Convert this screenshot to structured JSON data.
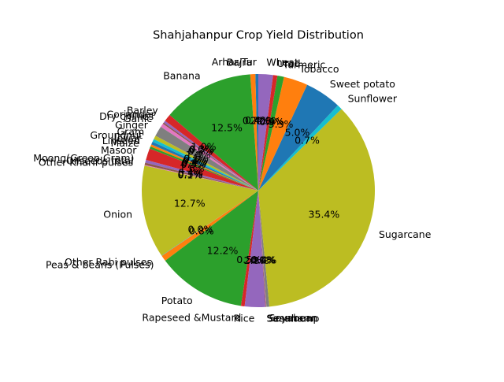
{
  "chart_data": {
    "type": "pie",
    "title": "Shahjahanpur Crop Yield Distribution",
    "start_angle_deg": 90,
    "direction": "counterclockwise",
    "slices": [
      {
        "label": "Arhar/Tur",
        "value": 0.4,
        "pct_label": "0.4%",
        "color": "#1f77b4"
      },
      {
        "label": "Bajra",
        "value": 0.7,
        "pct_label": "0.7%",
        "color": "#ff7f0e"
      },
      {
        "label": "Banana",
        "value": 12.5,
        "pct_label": "12.5%",
        "color": "#2ca02c"
      },
      {
        "label": "Barley",
        "value": 1.0,
        "pct_label": "1.0%",
        "color": "#d62728"
      },
      {
        "label": "Coriander",
        "value": 0.3,
        "pct_label": "0.3%",
        "color": "#9467bd"
      },
      {
        "label": "Dry chillies",
        "value": 0.2,
        "pct_label": "0.2%",
        "color": "#8c564b"
      },
      {
        "label": "Garlic",
        "value": 0.5,
        "pct_label": "0.5%",
        "color": "#e377c2"
      },
      {
        "label": "Ginger",
        "value": 1.4,
        "pct_label": "1.4%",
        "color": "#7f7f7f"
      },
      {
        "label": "Gram",
        "value": 0.5,
        "pct_label": "0.5%",
        "color": "#bcbd22"
      },
      {
        "label": "Groundnut",
        "value": 0.4,
        "pct_label": "0.4%",
        "color": "#17becf"
      },
      {
        "label": "Jowar",
        "value": 0.4,
        "pct_label": "0.4%",
        "color": "#1f77b4"
      },
      {
        "label": "Linseed",
        "value": 0.3,
        "pct_label": "0.3%",
        "color": "#ff7f0e"
      },
      {
        "label": "Maize",
        "value": 0.3,
        "pct_label": "0.3%",
        "color": "#2ca02c"
      },
      {
        "label": "Masoor",
        "value": 1.6,
        "pct_label": "1.6%",
        "color": "#d62728"
      },
      {
        "label": "Moong(Green Gram)",
        "value": 0.4,
        "pct_label": "0.4%",
        "color": "#9467bd"
      },
      {
        "label": "Oilseeds total",
        "value": 0.3,
        "pct_label": "0.3%",
        "color": "#8c564b"
      },
      {
        "label": "Other Kharif pulses",
        "value": 0.1,
        "pct_label": "0.1%",
        "color": "#e377c2"
      },
      {
        "label": "Onion",
        "value": 12.7,
        "pct_label": "12.7%",
        "color": "#bcbd22"
      },
      {
        "label": "Other Rabi pulses",
        "value": 0.05,
        "pct_label": "0.0%",
        "color": "#17becf"
      },
      {
        "label": "Peas & beans (Pulses)",
        "value": 0.8,
        "pct_label": "0.8%",
        "color": "#ff7f0e"
      },
      {
        "label": "Potato",
        "value": 12.2,
        "pct_label": "12.2%",
        "color": "#2ca02c"
      },
      {
        "label": "Rapeseed &Mustard",
        "value": 0.5,
        "pct_label": "0.5%",
        "color": "#d62728"
      },
      {
        "label": "Rice",
        "value": 2.8,
        "pct_label": "2.8%",
        "color": "#9467bd"
      },
      {
        "label": "Sannhamp",
        "value": 0.1,
        "pct_label": "0.1%",
        "color": "#8c564b"
      },
      {
        "label": "Sesamum",
        "value": 0.05,
        "pct_label": "0.0%",
        "color": "#e377c2"
      },
      {
        "label": "Soyabean",
        "value": 0.4,
        "pct_label": "0.4%",
        "color": "#7f7f7f"
      },
      {
        "label": "Sugarcane",
        "value": 35.4,
        "pct_label": "35.4%",
        "color": "#bcbd22"
      },
      {
        "label": "Sunflower",
        "value": 0.7,
        "pct_label": "0.7%",
        "color": "#17becf"
      },
      {
        "label": "Sweet potato",
        "value": 5.0,
        "pct_label": "5.0%",
        "color": "#1f77b4"
      },
      {
        "label": "Tobacco",
        "value": 3.3,
        "pct_label": "3.3%",
        "color": "#ff7f0e"
      },
      {
        "label": "Turmeric",
        "value": 0.9,
        "pct_label": "0.9%",
        "color": "#2ca02c"
      },
      {
        "label": "Urad",
        "value": 0.6,
        "pct_label": "0.6%",
        "color": "#d62728"
      },
      {
        "label": "Wheat",
        "value": 2.0,
        "pct_label": "2.0%",
        "color": "#9467bd"
      },
      {
        "label": "Arhar/Tur",
        "value": 0.4,
        "pct_label": "0.4%",
        "color": "#8c564b",
        "note": "duplicate legend position"
      }
    ]
  }
}
